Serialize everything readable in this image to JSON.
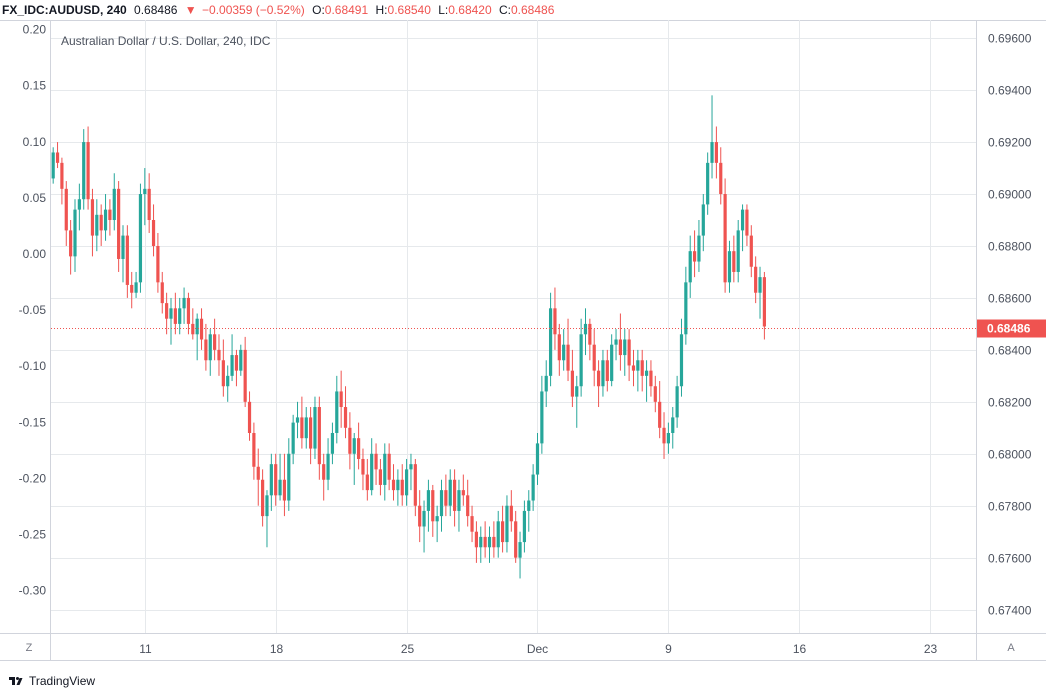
{
  "header": {
    "symbol": "FX_IDC:AUDUSD, 240",
    "last": "0.68486",
    "arrow": "▼",
    "change": "−0.00359 (−0.52%)",
    "open_label": "O:",
    "open_value": "0.68491",
    "high_label": "H:",
    "high_value": "0.68540",
    "low_label": "L:",
    "low_value": "0.68420",
    "close_label": "C:",
    "close_value": "0.68486"
  },
  "footer": {
    "brand": "TradingView"
  },
  "buttons": {
    "left": "Z",
    "right": "A"
  },
  "colors": {
    "up": "#26a69a",
    "down": "#ef5350",
    "grid": "#e6e9ec",
    "text": "#131722",
    "axis_text": "#4c525e"
  },
  "chart_data": {
    "type": "candlestick",
    "title": "Australian Dollar / U.S. Dollar, 240, IDC",
    "right_axis": {
      "ticks": [
        0.696,
        0.694,
        0.692,
        0.69,
        0.688,
        0.686,
        0.684,
        0.682,
        0.68,
        0.678,
        0.676,
        0.674
      ],
      "tick_labels": [
        "0.69600",
        "0.69400",
        "0.69200",
        "0.69000",
        "0.68800",
        "0.68600",
        "0.68400",
        "0.68200",
        "0.68000",
        "0.67800",
        "0.67600",
        "0.67400"
      ]
    },
    "left_axis": {
      "ticks": [
        0.2,
        0.15,
        0.1,
        0.05,
        0.0,
        -0.05,
        -0.1,
        -0.15,
        -0.2,
        -0.25,
        -0.3
      ],
      "tick_labels": [
        "0.20",
        "0.15",
        "0.10",
        "0.05",
        "0.00",
        "-0.05",
        "-0.10",
        "-0.15",
        "-0.20",
        "-0.25",
        "-0.30"
      ]
    },
    "x_axis": {
      "tick_labels": [
        "11",
        "18",
        "25",
        "Dec",
        "9",
        "16",
        "23"
      ],
      "tick_candle_index": [
        21,
        51,
        81,
        111,
        141,
        171,
        201
      ],
      "total_slots": 212
    },
    "last_price": 0.68486,
    "last_price_label": "0.68486",
    "grid": true,
    "series": [
      {
        "o": 0.6906,
        "h": 0.6918,
        "l": 0.6904,
        "c": 0.6916
      },
      {
        "o": 0.6916,
        "h": 0.692,
        "l": 0.691,
        "c": 0.6912
      },
      {
        "o": 0.6912,
        "h": 0.6914,
        "l": 0.6896,
        "c": 0.6902
      },
      {
        "o": 0.6902,
        "h": 0.6905,
        "l": 0.688,
        "c": 0.6886
      },
      {
        "o": 0.6886,
        "h": 0.689,
        "l": 0.6869,
        "c": 0.6876
      },
      {
        "o": 0.6876,
        "h": 0.6898,
        "l": 0.687,
        "c": 0.6894
      },
      {
        "o": 0.6894,
        "h": 0.6904,
        "l": 0.6886,
        "c": 0.6898
      },
      {
        "o": 0.6898,
        "h": 0.6925,
        "l": 0.6894,
        "c": 0.692
      },
      {
        "o": 0.692,
        "h": 0.6926,
        "l": 0.6894,
        "c": 0.6898
      },
      {
        "o": 0.6898,
        "h": 0.6902,
        "l": 0.6876,
        "c": 0.6884
      },
      {
        "o": 0.6884,
        "h": 0.6898,
        "l": 0.6878,
        "c": 0.6892
      },
      {
        "o": 0.6892,
        "h": 0.6896,
        "l": 0.688,
        "c": 0.6886
      },
      {
        "o": 0.6886,
        "h": 0.69,
        "l": 0.6882,
        "c": 0.6894
      },
      {
        "o": 0.6894,
        "h": 0.6898,
        "l": 0.6884,
        "c": 0.689
      },
      {
        "o": 0.689,
        "h": 0.6908,
        "l": 0.6886,
        "c": 0.6902
      },
      {
        "o": 0.6902,
        "h": 0.6905,
        "l": 0.687,
        "c": 0.6875
      },
      {
        "o": 0.6875,
        "h": 0.6888,
        "l": 0.6866,
        "c": 0.6884
      },
      {
        "o": 0.6884,
        "h": 0.6888,
        "l": 0.686,
        "c": 0.6865
      },
      {
        "o": 0.6865,
        "h": 0.687,
        "l": 0.6856,
        "c": 0.6862
      },
      {
        "o": 0.6862,
        "h": 0.687,
        "l": 0.686,
        "c": 0.6866
      },
      {
        "o": 0.6866,
        "h": 0.6904,
        "l": 0.6862,
        "c": 0.69
      },
      {
        "o": 0.69,
        "h": 0.691,
        "l": 0.6888,
        "c": 0.6902
      },
      {
        "o": 0.6902,
        "h": 0.6908,
        "l": 0.6885,
        "c": 0.689
      },
      {
        "o": 0.689,
        "h": 0.6896,
        "l": 0.6876,
        "c": 0.688
      },
      {
        "o": 0.688,
        "h": 0.6885,
        "l": 0.6862,
        "c": 0.6866
      },
      {
        "o": 0.6866,
        "h": 0.687,
        "l": 0.6854,
        "c": 0.6858
      },
      {
        "o": 0.6858,
        "h": 0.6862,
        "l": 0.6846,
        "c": 0.6852
      },
      {
        "o": 0.6852,
        "h": 0.686,
        "l": 0.6842,
        "c": 0.6856
      },
      {
        "o": 0.6856,
        "h": 0.6862,
        "l": 0.6846,
        "c": 0.685
      },
      {
        "o": 0.685,
        "h": 0.686,
        "l": 0.6846,
        "c": 0.6856
      },
      {
        "o": 0.6856,
        "h": 0.6864,
        "l": 0.685,
        "c": 0.686
      },
      {
        "o": 0.686,
        "h": 0.6862,
        "l": 0.6846,
        "c": 0.685
      },
      {
        "o": 0.685,
        "h": 0.6856,
        "l": 0.6844,
        "c": 0.6846
      },
      {
        "o": 0.6846,
        "h": 0.6854,
        "l": 0.6836,
        "c": 0.6852
      },
      {
        "o": 0.6852,
        "h": 0.6856,
        "l": 0.684,
        "c": 0.6844
      },
      {
        "o": 0.6844,
        "h": 0.685,
        "l": 0.6832,
        "c": 0.6836
      },
      {
        "o": 0.6836,
        "h": 0.6848,
        "l": 0.683,
        "c": 0.6846
      },
      {
        "o": 0.6846,
        "h": 0.6852,
        "l": 0.6836,
        "c": 0.684
      },
      {
        "o": 0.684,
        "h": 0.6846,
        "l": 0.683,
        "c": 0.6836
      },
      {
        "o": 0.6836,
        "h": 0.6844,
        "l": 0.6822,
        "c": 0.6826
      },
      {
        "o": 0.6826,
        "h": 0.6834,
        "l": 0.682,
        "c": 0.683
      },
      {
        "o": 0.683,
        "h": 0.6846,
        "l": 0.6828,
        "c": 0.6838
      },
      {
        "o": 0.6838,
        "h": 0.684,
        "l": 0.6826,
        "c": 0.6832
      },
      {
        "o": 0.6832,
        "h": 0.6842,
        "l": 0.683,
        "c": 0.684
      },
      {
        "o": 0.684,
        "h": 0.6845,
        "l": 0.6818,
        "c": 0.682
      },
      {
        "o": 0.682,
        "h": 0.6824,
        "l": 0.6805,
        "c": 0.6808
      },
      {
        "o": 0.6808,
        "h": 0.6812,
        "l": 0.679,
        "c": 0.6795
      },
      {
        "o": 0.6795,
        "h": 0.6802,
        "l": 0.678,
        "c": 0.679
      },
      {
        "o": 0.679,
        "h": 0.6794,
        "l": 0.6772,
        "c": 0.6776
      },
      {
        "o": 0.6776,
        "h": 0.6786,
        "l": 0.6764,
        "c": 0.6784
      },
      {
        "o": 0.6784,
        "h": 0.68,
        "l": 0.6778,
        "c": 0.6796
      },
      {
        "o": 0.6796,
        "h": 0.68,
        "l": 0.678,
        "c": 0.6784
      },
      {
        "o": 0.6784,
        "h": 0.68,
        "l": 0.6782,
        "c": 0.679
      },
      {
        "o": 0.679,
        "h": 0.68,
        "l": 0.6776,
        "c": 0.6782
      },
      {
        "o": 0.6782,
        "h": 0.6806,
        "l": 0.6778,
        "c": 0.68
      },
      {
        "o": 0.68,
        "h": 0.6815,
        "l": 0.6796,
        "c": 0.6812
      },
      {
        "o": 0.6812,
        "h": 0.682,
        "l": 0.6806,
        "c": 0.6814
      },
      {
        "o": 0.6814,
        "h": 0.6822,
        "l": 0.6802,
        "c": 0.6806
      },
      {
        "o": 0.6806,
        "h": 0.6818,
        "l": 0.6802,
        "c": 0.6814
      },
      {
        "o": 0.6814,
        "h": 0.6818,
        "l": 0.6796,
        "c": 0.6802
      },
      {
        "o": 0.6802,
        "h": 0.6822,
        "l": 0.6798,
        "c": 0.6818
      },
      {
        "o": 0.6818,
        "h": 0.6822,
        "l": 0.679,
        "c": 0.6796
      },
      {
        "o": 0.6796,
        "h": 0.68,
        "l": 0.6782,
        "c": 0.679
      },
      {
        "o": 0.679,
        "h": 0.6806,
        "l": 0.6786,
        "c": 0.68
      },
      {
        "o": 0.68,
        "h": 0.6812,
        "l": 0.6796,
        "c": 0.6808
      },
      {
        "o": 0.6808,
        "h": 0.683,
        "l": 0.6804,
        "c": 0.6824
      },
      {
        "o": 0.6824,
        "h": 0.6832,
        "l": 0.681,
        "c": 0.6818
      },
      {
        "o": 0.6818,
        "h": 0.6826,
        "l": 0.6806,
        "c": 0.681
      },
      {
        "o": 0.681,
        "h": 0.6816,
        "l": 0.6794,
        "c": 0.68
      },
      {
        "o": 0.68,
        "h": 0.6808,
        "l": 0.6788,
        "c": 0.6806
      },
      {
        "o": 0.6806,
        "h": 0.6812,
        "l": 0.6794,
        "c": 0.6798
      },
      {
        "o": 0.6798,
        "h": 0.6802,
        "l": 0.6786,
        "c": 0.6792
      },
      {
        "o": 0.6792,
        "h": 0.6798,
        "l": 0.6782,
        "c": 0.6786
      },
      {
        "o": 0.6786,
        "h": 0.6806,
        "l": 0.6784,
        "c": 0.68
      },
      {
        "o": 0.68,
        "h": 0.6804,
        "l": 0.6788,
        "c": 0.6794
      },
      {
        "o": 0.6794,
        "h": 0.6798,
        "l": 0.6784,
        "c": 0.6788
      },
      {
        "o": 0.6788,
        "h": 0.6804,
        "l": 0.6782,
        "c": 0.68
      },
      {
        "o": 0.68,
        "h": 0.6804,
        "l": 0.6786,
        "c": 0.679
      },
      {
        "o": 0.679,
        "h": 0.6796,
        "l": 0.6782,
        "c": 0.6786
      },
      {
        "o": 0.6786,
        "h": 0.6794,
        "l": 0.678,
        "c": 0.679
      },
      {
        "o": 0.679,
        "h": 0.6796,
        "l": 0.678,
        "c": 0.6784
      },
      {
        "o": 0.6784,
        "h": 0.6798,
        "l": 0.678,
        "c": 0.6794
      },
      {
        "o": 0.6794,
        "h": 0.68,
        "l": 0.6786,
        "c": 0.6796
      },
      {
        "o": 0.6796,
        "h": 0.6798,
        "l": 0.6776,
        "c": 0.678
      },
      {
        "o": 0.678,
        "h": 0.6786,
        "l": 0.6766,
        "c": 0.6772
      },
      {
        "o": 0.6772,
        "h": 0.6782,
        "l": 0.6762,
        "c": 0.6778
      },
      {
        "o": 0.6778,
        "h": 0.679,
        "l": 0.677,
        "c": 0.6786
      },
      {
        "o": 0.6786,
        "h": 0.6788,
        "l": 0.6768,
        "c": 0.6774
      },
      {
        "o": 0.6774,
        "h": 0.678,
        "l": 0.6766,
        "c": 0.6776
      },
      {
        "o": 0.6776,
        "h": 0.679,
        "l": 0.677,
        "c": 0.6786
      },
      {
        "o": 0.6786,
        "h": 0.6792,
        "l": 0.6776,
        "c": 0.678
      },
      {
        "o": 0.678,
        "h": 0.6794,
        "l": 0.6776,
        "c": 0.679
      },
      {
        "o": 0.679,
        "h": 0.6794,
        "l": 0.6772,
        "c": 0.6778
      },
      {
        "o": 0.6778,
        "h": 0.679,
        "l": 0.677,
        "c": 0.6786
      },
      {
        "o": 0.6786,
        "h": 0.6792,
        "l": 0.678,
        "c": 0.6784
      },
      {
        "o": 0.6784,
        "h": 0.679,
        "l": 0.6772,
        "c": 0.6776
      },
      {
        "o": 0.6776,
        "h": 0.678,
        "l": 0.6766,
        "c": 0.677
      },
      {
        "o": 0.677,
        "h": 0.6774,
        "l": 0.6758,
        "c": 0.6764
      },
      {
        "o": 0.6764,
        "h": 0.6772,
        "l": 0.6758,
        "c": 0.6768
      },
      {
        "o": 0.6768,
        "h": 0.6774,
        "l": 0.676,
        "c": 0.6764
      },
      {
        "o": 0.6764,
        "h": 0.6772,
        "l": 0.6758,
        "c": 0.6768
      },
      {
        "o": 0.6768,
        "h": 0.6774,
        "l": 0.676,
        "c": 0.6764
      },
      {
        "o": 0.6764,
        "h": 0.6778,
        "l": 0.676,
        "c": 0.6774
      },
      {
        "o": 0.6774,
        "h": 0.678,
        "l": 0.6762,
        "c": 0.6766
      },
      {
        "o": 0.6766,
        "h": 0.6784,
        "l": 0.6762,
        "c": 0.678
      },
      {
        "o": 0.678,
        "h": 0.6786,
        "l": 0.677,
        "c": 0.6774
      },
      {
        "o": 0.6774,
        "h": 0.6778,
        "l": 0.6758,
        "c": 0.676
      },
      {
        "o": 0.676,
        "h": 0.677,
        "l": 0.6752,
        "c": 0.6766
      },
      {
        "o": 0.6766,
        "h": 0.6782,
        "l": 0.6762,
        "c": 0.6778
      },
      {
        "o": 0.6778,
        "h": 0.6786,
        "l": 0.677,
        "c": 0.6782
      },
      {
        "o": 0.6782,
        "h": 0.6796,
        "l": 0.6778,
        "c": 0.6792
      },
      {
        "o": 0.6792,
        "h": 0.6808,
        "l": 0.6788,
        "c": 0.6804
      },
      {
        "o": 0.6804,
        "h": 0.683,
        "l": 0.68,
        "c": 0.6824
      },
      {
        "o": 0.6824,
        "h": 0.6836,
        "l": 0.6818,
        "c": 0.683
      },
      {
        "o": 0.683,
        "h": 0.6862,
        "l": 0.6826,
        "c": 0.6856
      },
      {
        "o": 0.6856,
        "h": 0.6864,
        "l": 0.684,
        "c": 0.6846
      },
      {
        "o": 0.6846,
        "h": 0.685,
        "l": 0.683,
        "c": 0.6836
      },
      {
        "o": 0.6836,
        "h": 0.6848,
        "l": 0.6832,
        "c": 0.6842
      },
      {
        "o": 0.6842,
        "h": 0.6852,
        "l": 0.6828,
        "c": 0.6832
      },
      {
        "o": 0.6832,
        "h": 0.684,
        "l": 0.6818,
        "c": 0.6822
      },
      {
        "o": 0.6822,
        "h": 0.683,
        "l": 0.681,
        "c": 0.6826
      },
      {
        "o": 0.6826,
        "h": 0.6852,
        "l": 0.6822,
        "c": 0.6846
      },
      {
        "o": 0.6846,
        "h": 0.6856,
        "l": 0.6838,
        "c": 0.685
      },
      {
        "o": 0.685,
        "h": 0.6852,
        "l": 0.6836,
        "c": 0.6842
      },
      {
        "o": 0.6842,
        "h": 0.6848,
        "l": 0.6826,
        "c": 0.6832
      },
      {
        "o": 0.6832,
        "h": 0.6836,
        "l": 0.6818,
        "c": 0.6826
      },
      {
        "o": 0.6826,
        "h": 0.684,
        "l": 0.6822,
        "c": 0.6836
      },
      {
        "o": 0.6836,
        "h": 0.684,
        "l": 0.6824,
        "c": 0.6828
      },
      {
        "o": 0.6828,
        "h": 0.6846,
        "l": 0.6826,
        "c": 0.6842
      },
      {
        "o": 0.6842,
        "h": 0.6848,
        "l": 0.6836,
        "c": 0.6844
      },
      {
        "o": 0.6844,
        "h": 0.6854,
        "l": 0.6832,
        "c": 0.6838
      },
      {
        "o": 0.6838,
        "h": 0.6848,
        "l": 0.683,
        "c": 0.6844
      },
      {
        "o": 0.6844,
        "h": 0.6848,
        "l": 0.6828,
        "c": 0.6834
      },
      {
        "o": 0.6834,
        "h": 0.684,
        "l": 0.6826,
        "c": 0.6832
      },
      {
        "o": 0.6832,
        "h": 0.684,
        "l": 0.6824,
        "c": 0.6836
      },
      {
        "o": 0.6836,
        "h": 0.684,
        "l": 0.6824,
        "c": 0.683
      },
      {
        "o": 0.683,
        "h": 0.6836,
        "l": 0.682,
        "c": 0.6832
      },
      {
        "o": 0.6832,
        "h": 0.6836,
        "l": 0.6822,
        "c": 0.6826
      },
      {
        "o": 0.6826,
        "h": 0.683,
        "l": 0.6816,
        "c": 0.682
      },
      {
        "o": 0.682,
        "h": 0.6828,
        "l": 0.6806,
        "c": 0.681
      },
      {
        "o": 0.681,
        "h": 0.6816,
        "l": 0.6798,
        "c": 0.6804
      },
      {
        "o": 0.6804,
        "h": 0.6812,
        "l": 0.68,
        "c": 0.6808
      },
      {
        "o": 0.6808,
        "h": 0.6818,
        "l": 0.6802,
        "c": 0.6814
      },
      {
        "o": 0.6814,
        "h": 0.683,
        "l": 0.681,
        "c": 0.6826
      },
      {
        "o": 0.6826,
        "h": 0.6852,
        "l": 0.6822,
        "c": 0.6846
      },
      {
        "o": 0.6846,
        "h": 0.6872,
        "l": 0.6842,
        "c": 0.6866
      },
      {
        "o": 0.6866,
        "h": 0.6884,
        "l": 0.686,
        "c": 0.6878
      },
      {
        "o": 0.6878,
        "h": 0.6886,
        "l": 0.6868,
        "c": 0.6874
      },
      {
        "o": 0.6874,
        "h": 0.689,
        "l": 0.687,
        "c": 0.6884
      },
      {
        "o": 0.6884,
        "h": 0.69,
        "l": 0.6878,
        "c": 0.6896
      },
      {
        "o": 0.6896,
        "h": 0.6916,
        "l": 0.6892,
        "c": 0.6912
      },
      {
        "o": 0.6912,
        "h": 0.6938,
        "l": 0.6906,
        "c": 0.692
      },
      {
        "o": 0.692,
        "h": 0.6926,
        "l": 0.6906,
        "c": 0.6912
      },
      {
        "o": 0.6912,
        "h": 0.6918,
        "l": 0.6896,
        "c": 0.69
      },
      {
        "o": 0.69,
        "h": 0.6906,
        "l": 0.6862,
        "c": 0.6866
      },
      {
        "o": 0.6866,
        "h": 0.6882,
        "l": 0.6862,
        "c": 0.6878
      },
      {
        "o": 0.6878,
        "h": 0.6884,
        "l": 0.6866,
        "c": 0.687
      },
      {
        "o": 0.687,
        "h": 0.689,
        "l": 0.6866,
        "c": 0.6886
      },
      {
        "o": 0.6886,
        "h": 0.6896,
        "l": 0.6878,
        "c": 0.6894
      },
      {
        "o": 0.6894,
        "h": 0.6896,
        "l": 0.688,
        "c": 0.6884
      },
      {
        "o": 0.6884,
        "h": 0.6888,
        "l": 0.6868,
        "c": 0.6872
      },
      {
        "o": 0.6872,
        "h": 0.6876,
        "l": 0.6858,
        "c": 0.6862
      },
      {
        "o": 0.6862,
        "h": 0.6872,
        "l": 0.6852,
        "c": 0.6868
      },
      {
        "o": 0.6868,
        "h": 0.687,
        "l": 0.6844,
        "c": 0.6849
      }
    ]
  }
}
